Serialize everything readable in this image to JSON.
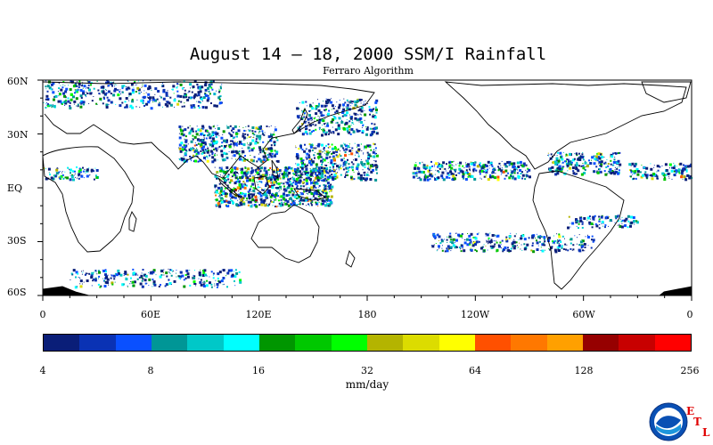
{
  "title": "August 14 – 18, 2000 SSM/I Rainfall",
  "subtitle": "Ferraro Algorithm",
  "y_axis_labels": [
    "60N",
    "30N",
    "EQ",
    "30S",
    "60S"
  ],
  "x_axis_labels": [
    "0",
    "60E",
    "120E",
    "180",
    "120W",
    "60W",
    "0"
  ],
  "colorbar": {
    "colors": [
      "#0a1e78",
      "#0a32b4",
      "#0a50ff",
      "#009696",
      "#00c8c8",
      "#00ffff",
      "#009600",
      "#00c800",
      "#00ff00",
      "#b4b400",
      "#dcdc00",
      "#ffff00",
      "#ff5000",
      "#ff7800",
      "#ffa000",
      "#960000",
      "#c80000",
      "#ff0000"
    ],
    "tick_labels": [
      "4",
      "8",
      "16",
      "32",
      "64",
      "128",
      "256"
    ],
    "units": "mm/day"
  },
  "logo": {
    "name": "NOAA",
    "letters": [
      "E",
      "T",
      "L"
    ]
  },
  "chart_data": {
    "type": "heatmap",
    "title": "August 14 – 18, 2000 SSM/I Rainfall",
    "subtitle": "Ferraro Algorithm",
    "xlabel": "",
    "ylabel": "",
    "x_range": [
      0,
      360
    ],
    "y_range": [
      -60,
      60
    ],
    "x_ticks": [
      "0",
      "60E",
      "120E",
      "180",
      "120W",
      "60W",
      "0"
    ],
    "y_ticks": [
      "60N",
      "30N",
      "EQ",
      "30S",
      "60S"
    ],
    "colorbar_ticks": [
      4,
      8,
      16,
      32,
      64,
      128,
      256
    ],
    "colorbar_label": "mm/day",
    "rain_regions": [
      {
        "lon": [
          0,
          30
        ],
        "lat": [
          5,
          12
        ],
        "intensity": 0.6
      },
      {
        "lon": [
          95,
          160
        ],
        "lat": [
          -10,
          12
        ],
        "intensity": 0.9
      },
      {
        "lon": [
          75,
          130
        ],
        "lat": [
          15,
          35
        ],
        "intensity": 0.6
      },
      {
        "lon": [
          140,
          185
        ],
        "lat": [
          5,
          25
        ],
        "intensity": 0.6
      },
      {
        "lon": [
          205,
          270
        ],
        "lat": [
          5,
          15
        ],
        "intensity": 0.7
      },
      {
        "lon": [
          280,
          320
        ],
        "lat": [
          8,
          20
        ],
        "intensity": 0.7
      },
      {
        "lon": [
          325,
          360
        ],
        "lat": [
          5,
          14
        ],
        "intensity": 0.6
      },
      {
        "lon": [
          140,
          185
        ],
        "lat": [
          30,
          50
        ],
        "intensity": 0.5
      },
      {
        "lon": [
          215,
          305
        ],
        "lat": [
          -35,
          -25
        ],
        "intensity": 0.5
      },
      {
        "lon": [
          15,
          110
        ],
        "lat": [
          -55,
          -45
        ],
        "intensity": 0.4
      },
      {
        "lon": [
          0,
          100
        ],
        "lat": [
          45,
          60
        ],
        "intensity": 0.4
      },
      {
        "lon": [
          290,
          330
        ],
        "lat": [
          -22,
          -15
        ],
        "intensity": 0.5
      }
    ]
  }
}
